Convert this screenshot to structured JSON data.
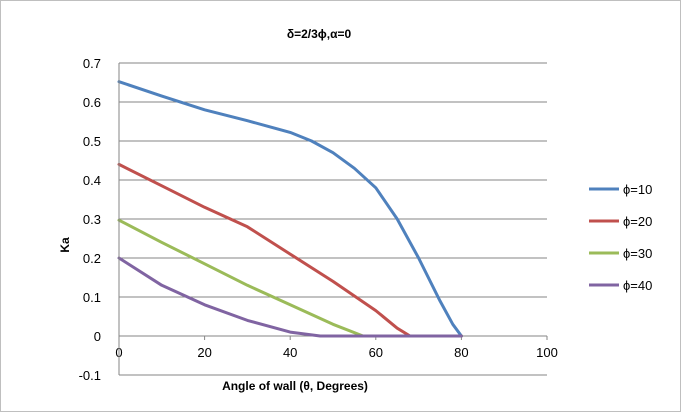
{
  "chart_data": {
    "type": "line",
    "title": "δ=2/3ϕ,α=0",
    "xlabel": "Angle of wall (θ, Degrees)",
    "ylabel": "Ka",
    "xlim": [
      0,
      100
    ],
    "ylim": [
      -0.1,
      0.7
    ],
    "x_ticks": [
      "0",
      "20",
      "40",
      "60",
      "80",
      "100"
    ],
    "y_ticks": [
      "-0.1",
      "0",
      "0.1",
      "0.2",
      "0.3",
      "0.4",
      "0.5",
      "0.6",
      "0.7"
    ],
    "grid": "horizontal",
    "legend_position": "right",
    "series": [
      {
        "name": "ϕ=10",
        "color": "#4F81BD",
        "points": [
          [
            0,
            0.652
          ],
          [
            10,
            0.615
          ],
          [
            20,
            0.58
          ],
          [
            30,
            0.552
          ],
          [
            40,
            0.522
          ],
          [
            45,
            0.5
          ],
          [
            50,
            0.47
          ],
          [
            55,
            0.43
          ],
          [
            60,
            0.38
          ],
          [
            65,
            0.3
          ],
          [
            70,
            0.2
          ],
          [
            75,
            0.09
          ],
          [
            78,
            0.03
          ],
          [
            80,
            0.0
          ]
        ]
      },
      {
        "name": "ϕ=20",
        "color": "#C0504D",
        "points": [
          [
            0,
            0.44
          ],
          [
            10,
            0.385
          ],
          [
            20,
            0.33
          ],
          [
            30,
            0.28
          ],
          [
            40,
            0.21
          ],
          [
            50,
            0.14
          ],
          [
            60,
            0.065
          ],
          [
            65,
            0.02
          ],
          [
            68,
            0.0
          ],
          [
            80,
            0.0
          ]
        ]
      },
      {
        "name": "ϕ=30",
        "color": "#9BBB59",
        "points": [
          [
            0,
            0.297
          ],
          [
            10,
            0.24
          ],
          [
            20,
            0.185
          ],
          [
            30,
            0.13
          ],
          [
            40,
            0.08
          ],
          [
            50,
            0.03
          ],
          [
            57,
            0.0
          ],
          [
            80,
            0.0
          ]
        ]
      },
      {
        "name": "ϕ=40",
        "color": "#8064A2",
        "points": [
          [
            0,
            0.2
          ],
          [
            10,
            0.13
          ],
          [
            20,
            0.08
          ],
          [
            30,
            0.04
          ],
          [
            40,
            0.01
          ],
          [
            47,
            0.0
          ],
          [
            80,
            0.0
          ]
        ]
      }
    ]
  }
}
